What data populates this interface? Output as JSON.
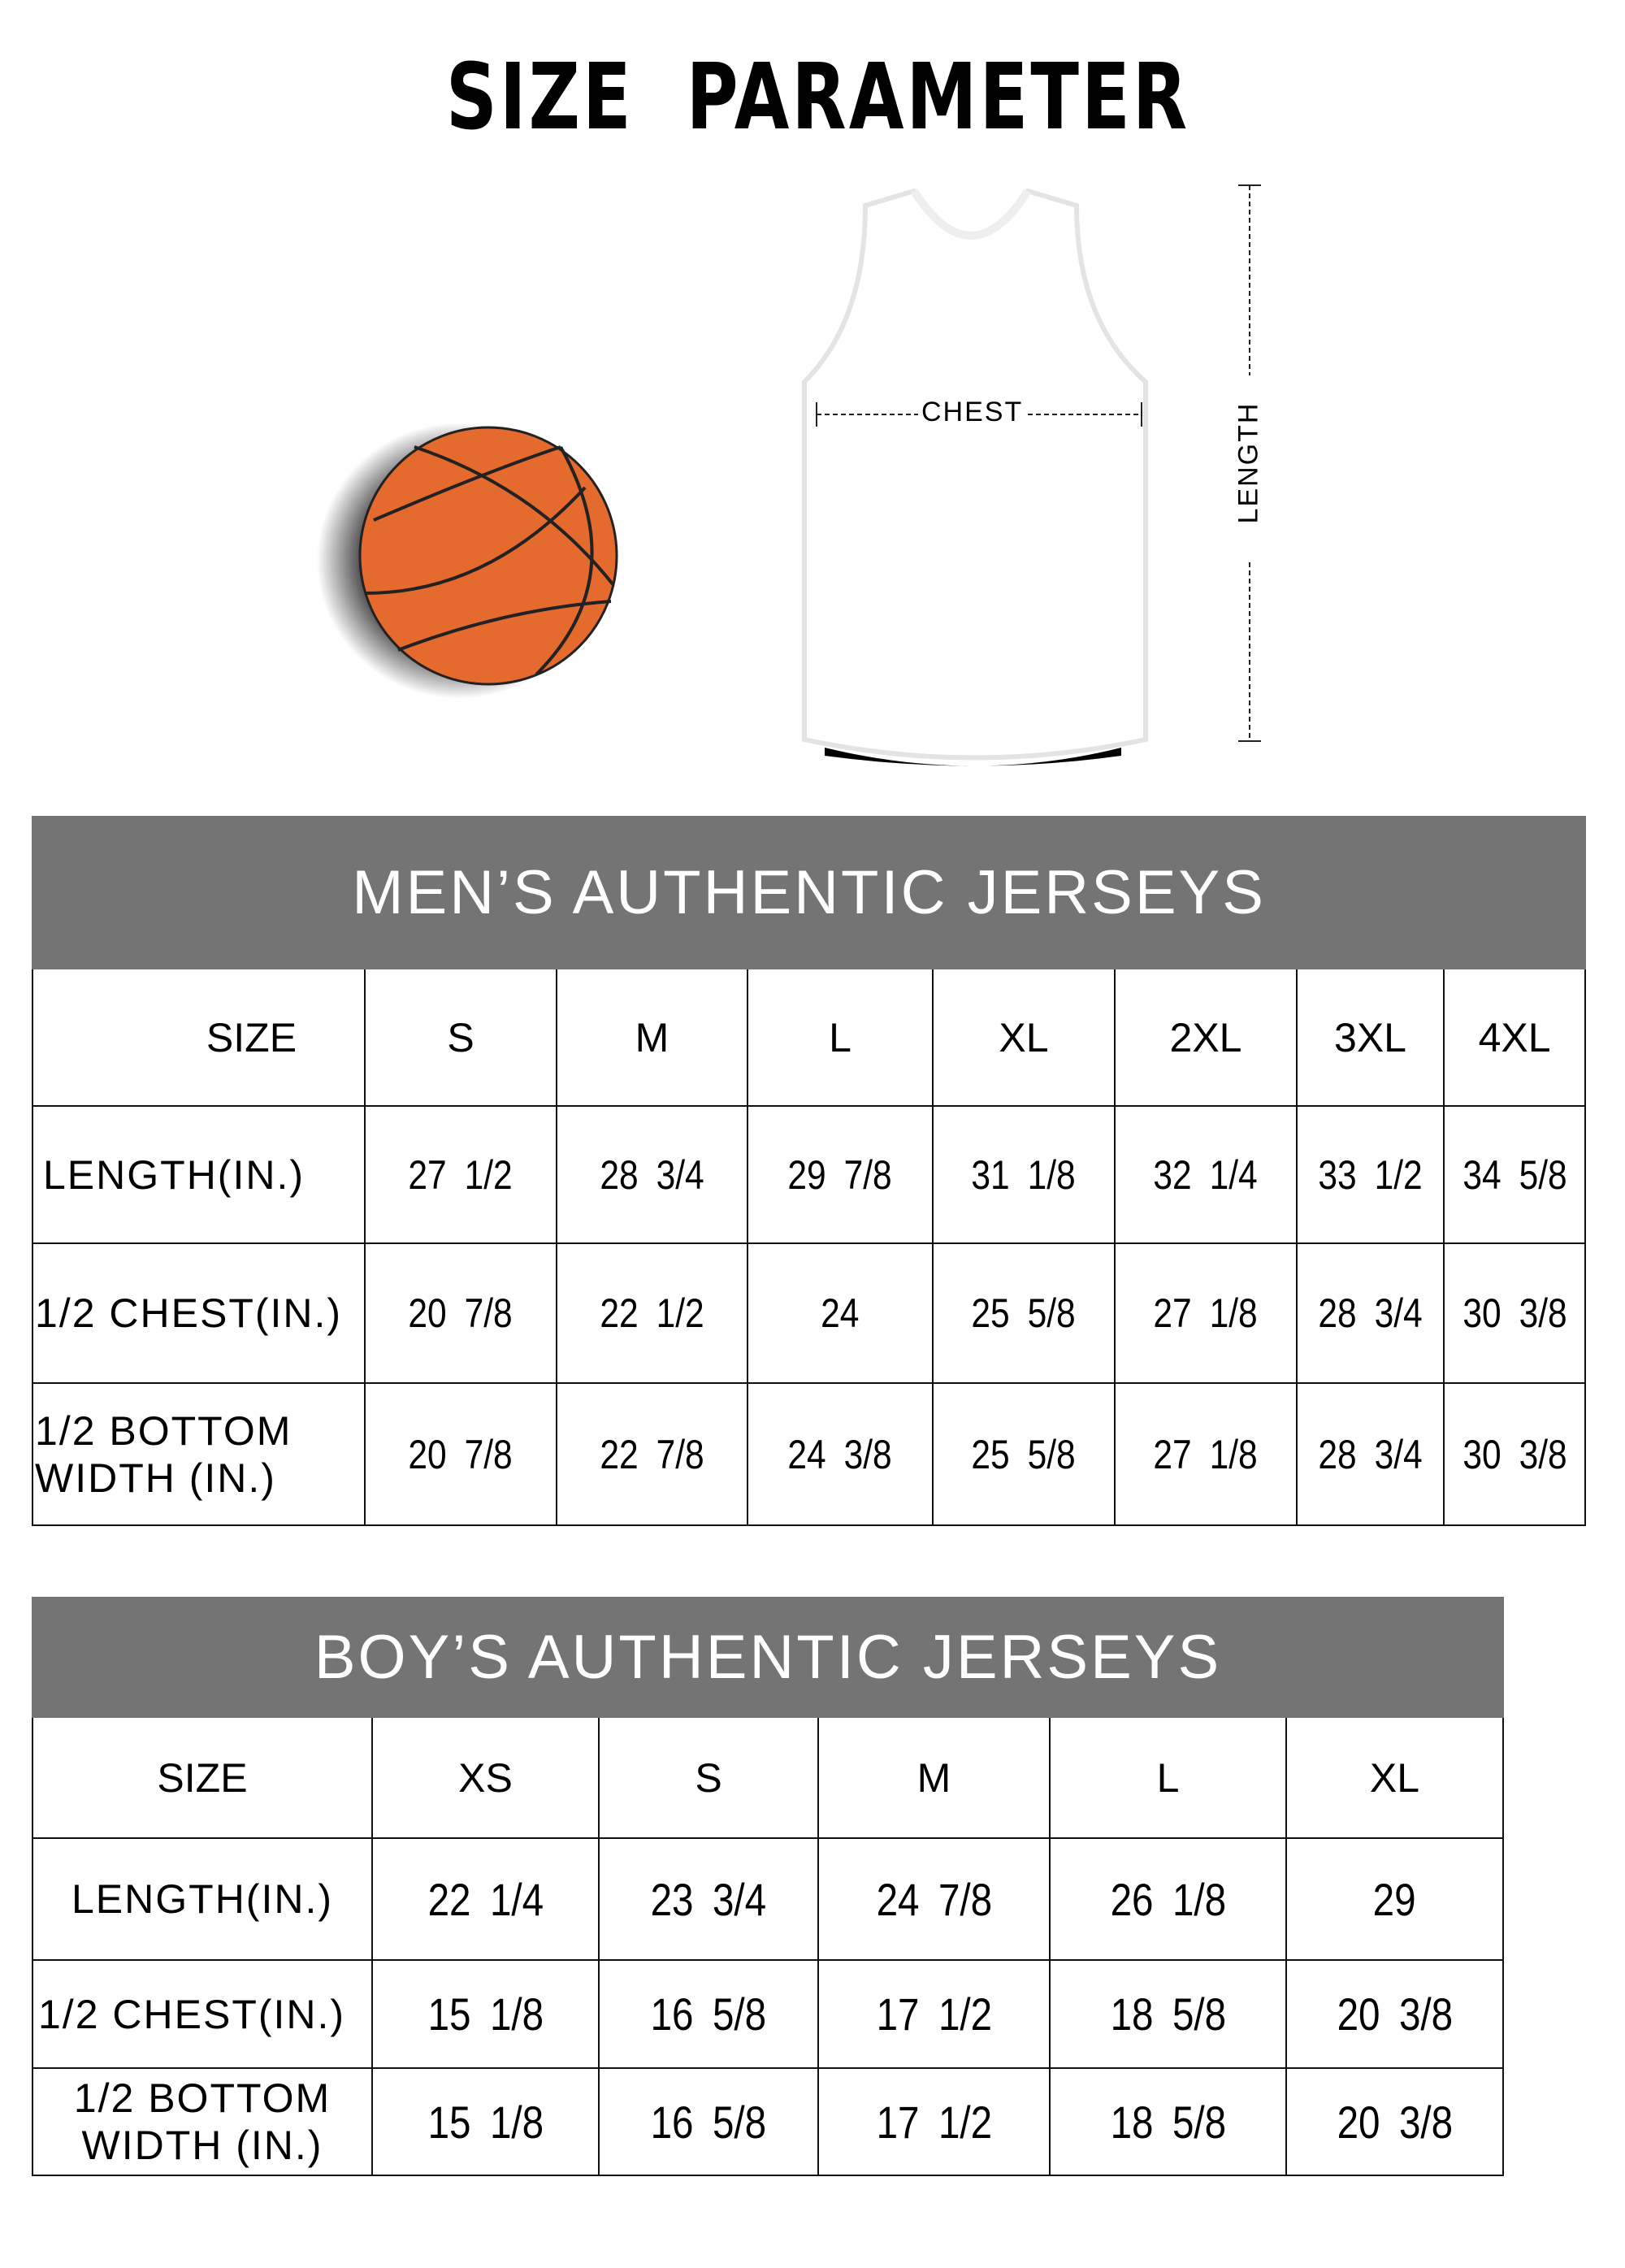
{
  "title": "SIZE PARAMETER",
  "diagram": {
    "chest_label": "CHEST",
    "length_label": "LENGTH",
    "ball_color": "#E46A2E",
    "header_color": "#747474"
  },
  "mens": {
    "title": "MEN’S AUTHENTIC JERSEYS",
    "size_label": "SIZE",
    "sizes": [
      "S",
      "M",
      "L",
      "XL",
      "2XL",
      "3XL",
      "4XL"
    ],
    "rows": [
      {
        "label": "LENGTH(IN.)",
        "values": [
          "27 1/2",
          "28 3/4",
          "29 7/8",
          "31 1/8",
          "32 1/4",
          "33 1/2",
          "34 5/8"
        ]
      },
      {
        "label": "1/2 CHEST(IN.)",
        "values": [
          "20 7/8",
          "22 1/2",
          "24",
          "25 5/8",
          "27 1/8",
          "28 3/4",
          "30 3/8"
        ]
      },
      {
        "label": "1/2 BOTTOM WIDTH (IN.)",
        "values": [
          "20 7/8",
          "22 7/8",
          "24 3/8",
          "25 5/8",
          "27 1/8",
          "28 3/4",
          "30 3/8"
        ]
      }
    ]
  },
  "boys": {
    "title": "BOY’S AUTHENTIC JERSEYS",
    "size_label": "SIZE",
    "sizes": [
      "XS",
      "S",
      "M",
      "L",
      "XL"
    ],
    "rows": [
      {
        "label": "LENGTH(IN.)",
        "values": [
          "22 1/4",
          "23 3/4",
          "24 7/8",
          "26 1/8",
          "29"
        ]
      },
      {
        "label": "1/2 CHEST(IN.)",
        "values": [
          "15 1/8",
          "16 5/8",
          "17 1/2",
          "18 5/8",
          "20 3/8"
        ]
      },
      {
        "label": "1/2 BOTTOM WIDTH (IN.)",
        "values": [
          "15 1/8",
          "16 5/8",
          "17 1/2",
          "18 5/8",
          "20 3/8"
        ]
      }
    ]
  }
}
